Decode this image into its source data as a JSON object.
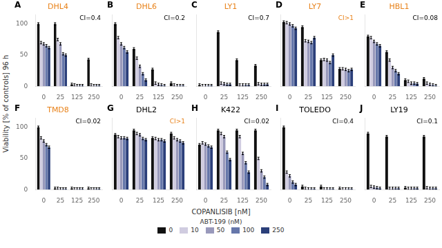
{
  "chart_data": [
    {
      "type": "bar",
      "title": "DHL4",
      "title_color": "#E8821A",
      "ylabel": "Viability [% of controls] 96 h",
      "annotations": [
        {
          "text": "A"
        },
        {
          "text": "CI=0.4",
          "color": "black"
        }
      ],
      "categories": [
        "0",
        "25",
        "125",
        "250"
      ],
      "series": [
        {
          "name": "0",
          "color": "#111111",
          "values": [
            100,
            100,
            3,
            43
          ],
          "error": [
            2,
            2,
            2,
            2
          ]
        },
        {
          "name": "10",
          "color": "#d0cce0",
          "values": [
            70,
            75,
            2,
            2
          ],
          "error": [
            2,
            2,
            2,
            2
          ]
        },
        {
          "name": "50",
          "color": "#9999bb",
          "values": [
            68,
            68,
            1,
            1
          ],
          "error": [
            2,
            2,
            2,
            2
          ]
        },
        {
          "name": "100",
          "color": "#6677aa",
          "values": [
            65,
            52,
            1,
            1
          ],
          "error": [
            2,
            2,
            2,
            2
          ]
        },
        {
          "name": "250",
          "color": "#2b3f7a",
          "values": [
            62,
            50,
            1,
            1
          ],
          "error": [
            2,
            2,
            2,
            2
          ]
        }
      ],
      "ylim": [
        0,
        115
      ],
      "yticks": [
        0,
        50,
        100
      ],
      "grid": false
    },
    {
      "type": "bar",
      "title": "DHL6",
      "title_color": "#E8821A",
      "annotations": [
        {
          "text": "B"
        },
        {
          "text": "CI=0.2",
          "color": "black"
        }
      ],
      "categories": [
        "0",
        "25",
        "125",
        "250"
      ],
      "series": [
        {
          "name": "0",
          "color": "#111111",
          "values": [
            100,
            60,
            27,
            5
          ],
          "error": [
            2,
            2,
            2,
            2
          ]
        },
        {
          "name": "10",
          "color": "#d0cce0",
          "values": [
            78,
            45,
            5,
            2
          ],
          "error": [
            2,
            2,
            2,
            2
          ]
        },
        {
          "name": "50",
          "color": "#9999bb",
          "values": [
            68,
            32,
            3,
            1
          ],
          "error": [
            2,
            2,
            2,
            2
          ]
        },
        {
          "name": "100",
          "color": "#6677aa",
          "values": [
            62,
            20,
            2,
            1
          ],
          "error": [
            2,
            2,
            2,
            2
          ]
        },
        {
          "name": "250",
          "color": "#2b3f7a",
          "values": [
            55,
            10,
            1,
            1
          ],
          "error": [
            2,
            2,
            2,
            2
          ]
        }
      ],
      "ylim": [
        0,
        115
      ],
      "yticks": [
        0,
        50,
        100
      ],
      "grid": false,
      "tick_labels": "x"
    },
    {
      "type": "bar",
      "title": "LY1",
      "title_color": "#E8821A",
      "annotations": [
        {
          "text": "C"
        },
        {
          "text": "CI=0.7",
          "color": "black"
        }
      ],
      "categories": [
        "0",
        "25",
        "125",
        "250"
      ],
      "series": [
        {
          "name": "0",
          "color": "#111111",
          "values": [
            2,
            87,
            42,
            33
          ],
          "error": [
            2,
            2,
            2,
            2
          ]
        },
        {
          "name": "10",
          "color": "#d0cce0",
          "values": [
            1,
            5,
            2,
            4
          ],
          "error": [
            2,
            2,
            2,
            2
          ]
        },
        {
          "name": "50",
          "color": "#9999bb",
          "values": [
            1,
            4,
            2,
            3
          ],
          "error": [
            2,
            2,
            2,
            2
          ]
        },
        {
          "name": "100",
          "color": "#6677aa",
          "values": [
            1,
            3,
            2,
            3
          ],
          "error": [
            2,
            2,
            2,
            2
          ]
        },
        {
          "name": "250",
          "color": "#2b3f7a",
          "values": [
            1,
            3,
            2,
            3
          ],
          "error": [
            2,
            2,
            2,
            2
          ]
        }
      ],
      "ylim": [
        0,
        115
      ],
      "yticks": [
        0,
        50,
        100
      ],
      "grid": false,
      "tick_labels": "x"
    },
    {
      "type": "bar",
      "title": "LY7",
      "title_color": "#E8821A",
      "annotations": [
        {
          "text": "D"
        },
        {
          "text": "CI>1",
          "color": "#E8821A"
        }
      ],
      "categories": [
        "0",
        "25",
        "125",
        "250"
      ],
      "series": [
        {
          "name": "0",
          "color": "#111111",
          "values": [
            103,
            95,
            42,
            28
          ],
          "error": [
            2,
            2,
            2,
            2
          ]
        },
        {
          "name": "10",
          "color": "#d0cce0",
          "values": [
            102,
            73,
            43,
            28
          ],
          "error": [
            2,
            2,
            2,
            2
          ]
        },
        {
          "name": "50",
          "color": "#9999bb",
          "values": [
            100,
            72,
            42,
            27
          ],
          "error": [
            2,
            2,
            2,
            2
          ]
        },
        {
          "name": "100",
          "color": "#6677aa",
          "values": [
            97,
            70,
            38,
            25
          ],
          "error": [
            2,
            2,
            2,
            2
          ]
        },
        {
          "name": "250",
          "color": "#2b3f7a",
          "values": [
            93,
            78,
            50,
            27
          ],
          "error": [
            2,
            2,
            2,
            2
          ]
        }
      ],
      "ylim": [
        0,
        115
      ],
      "yticks": [
        0,
        50,
        100
      ],
      "grid": false,
      "tick_labels": "x"
    },
    {
      "type": "bar",
      "title": "HBL1",
      "title_color": "#E8821A",
      "annotations": [
        {
          "text": "E"
        },
        {
          "text": "CI=0.08",
          "color": "black"
        }
      ],
      "categories": [
        "0",
        "25",
        "125",
        "250"
      ],
      "series": [
        {
          "name": "0",
          "color": "#111111",
          "values": [
            80,
            55,
            10,
            12
          ],
          "error": [
            2,
            2,
            2,
            2
          ]
        },
        {
          "name": "10",
          "color": "#d0cce0",
          "values": [
            78,
            42,
            8,
            5
          ],
          "error": [
            2,
            2,
            2,
            2
          ]
        },
        {
          "name": "50",
          "color": "#9999bb",
          "values": [
            72,
            30,
            5,
            3
          ],
          "error": [
            2,
            2,
            2,
            2
          ]
        },
        {
          "name": "100",
          "color": "#6677aa",
          "values": [
            68,
            25,
            5,
            2
          ],
          "error": [
            2,
            2,
            2,
            2
          ]
        },
        {
          "name": "250",
          "color": "#2b3f7a",
          "values": [
            65,
            20,
            4,
            1
          ],
          "error": [
            2,
            2,
            2,
            2
          ]
        }
      ],
      "ylim": [
        0,
        115
      ],
      "yticks": [
        0,
        50,
        100
      ],
      "grid": false,
      "tick_labels": "x"
    },
    {
      "type": "bar",
      "title": "TMD8",
      "title_color": "#E8821A",
      "annotations": [
        {
          "text": "F"
        },
        {
          "text": "CI=0.02",
          "color": "black"
        }
      ],
      "categories": [
        "0",
        "25",
        "125",
        "250"
      ],
      "series": [
        {
          "name": "0",
          "color": "#111111",
          "values": [
            100,
            2,
            2,
            2
          ],
          "error": [
            2,
            2,
            2,
            2
          ]
        },
        {
          "name": "10",
          "color": "#d0cce0",
          "values": [
            83,
            2,
            1,
            1
          ],
          "error": [
            2,
            2,
            2,
            2
          ]
        },
        {
          "name": "50",
          "color": "#9999bb",
          "values": [
            78,
            1,
            1,
            1
          ],
          "error": [
            2,
            2,
            2,
            2
          ]
        },
        {
          "name": "100",
          "color": "#6677aa",
          "values": [
            72,
            1,
            1,
            1
          ],
          "error": [
            2,
            2,
            2,
            2
          ]
        },
        {
          "name": "250",
          "color": "#2b3f7a",
          "values": [
            68,
            1,
            1,
            1
          ],
          "error": [
            2,
            2,
            2,
            2
          ]
        }
      ],
      "ylim": [
        0,
        115
      ],
      "yticks": [
        0,
        50,
        100
      ],
      "grid": false
    },
    {
      "type": "bar",
      "title": "DHL2",
      "title_color": "black",
      "annotations": [
        {
          "text": "G"
        },
        {
          "text": "CI>1",
          "color": "#E8821A"
        }
      ],
      "categories": [
        "0",
        "25",
        "125",
        "250"
      ],
      "series": [
        {
          "name": "0",
          "color": "#111111",
          "values": [
            88,
            95,
            83,
            90
          ],
          "error": [
            2,
            2,
            2,
            2
          ]
        },
        {
          "name": "10",
          "color": "#d0cce0",
          "values": [
            85,
            90,
            82,
            83
          ],
          "error": [
            2,
            2,
            2,
            2
          ]
        },
        {
          "name": "50",
          "color": "#9999bb",
          "values": [
            83,
            88,
            80,
            80
          ],
          "error": [
            2,
            2,
            2,
            2
          ]
        },
        {
          "name": "100",
          "color": "#6677aa",
          "values": [
            83,
            82,
            80,
            78
          ],
          "error": [
            2,
            2,
            2,
            2
          ]
        },
        {
          "name": "250",
          "color": "#2b3f7a",
          "values": [
            82,
            80,
            78,
            75
          ],
          "error": [
            2,
            2,
            2,
            2
          ]
        }
      ],
      "ylim": [
        0,
        115
      ],
      "yticks": [
        0,
        50,
        100
      ],
      "grid": false,
      "tick_labels": "x"
    },
    {
      "type": "bar",
      "title": "K422",
      "title_color": "black",
      "xlabel": "COPANLISIB [nM]",
      "legend": "bottom",
      "legend_title": "ABT-199 (nM)",
      "annotations": [
        {
          "text": "H"
        },
        {
          "text": "CI=0.02",
          "color": "black"
        }
      ],
      "categories": [
        "0",
        "25",
        "125",
        "250"
      ],
      "series": [
        {
          "name": "0",
          "color": "#111111",
          "values": [
            72,
            95,
            95,
            95
          ],
          "error": [
            2,
            2,
            2,
            2
          ]
        },
        {
          "name": "10",
          "color": "#d0cce0",
          "values": [
            75,
            90,
            85,
            50
          ],
          "error": [
            2,
            2,
            2,
            2
          ]
        },
        {
          "name": "50",
          "color": "#9999bb",
          "values": [
            73,
            85,
            58,
            30
          ],
          "error": [
            2,
            2,
            2,
            2
          ]
        },
        {
          "name": "100",
          "color": "#6677aa",
          "values": [
            70,
            60,
            43,
            20
          ],
          "error": [
            2,
            2,
            2,
            2
          ]
        },
        {
          "name": "250",
          "color": "#2b3f7a",
          "values": [
            68,
            48,
            28,
            8
          ],
          "error": [
            2,
            2,
            2,
            2
          ]
        }
      ],
      "ylim": [
        0,
        115
      ],
      "yticks": [
        0,
        50,
        100
      ],
      "grid": false,
      "tick_labels": "x"
    },
    {
      "type": "bar",
      "title": "TOLEDO",
      "title_color": "black",
      "annotations": [
        {
          "text": "I"
        },
        {
          "text": "CI=0.4",
          "color": "black"
        }
      ],
      "categories": [
        "0",
        "25",
        "125",
        "250"
      ],
      "series": [
        {
          "name": "0",
          "color": "#111111",
          "values": [
            100,
            5,
            5,
            2
          ],
          "error": [
            2,
            2,
            2,
            2
          ]
        },
        {
          "name": "10",
          "color": "#d0cce0",
          "values": [
            28,
            2,
            1,
            1
          ],
          "error": [
            2,
            2,
            2,
            2
          ]
        },
        {
          "name": "50",
          "color": "#9999bb",
          "values": [
            22,
            1,
            1,
            1
          ],
          "error": [
            2,
            2,
            2,
            2
          ]
        },
        {
          "name": "100",
          "color": "#6677aa",
          "values": [
            12,
            1,
            1,
            1
          ],
          "error": [
            2,
            2,
            2,
            2
          ]
        },
        {
          "name": "250",
          "color": "#2b3f7a",
          "values": [
            8,
            1,
            1,
            1
          ],
          "error": [
            2,
            2,
            2,
            2
          ]
        }
      ],
      "ylim": [
        0,
        115
      ],
      "yticks": [
        0,
        50,
        100
      ],
      "grid": false,
      "tick_labels": "x"
    },
    {
      "type": "bar",
      "title": "LY19",
      "title_color": "black",
      "annotations": [
        {
          "text": "J"
        },
        {
          "text": "CI=0.1",
          "color": "black"
        }
      ],
      "categories": [
        "0",
        "25",
        "125",
        "250"
      ],
      "series": [
        {
          "name": "0",
          "color": "#111111",
          "values": [
            90,
            85,
            3,
            85
          ],
          "error": [
            2,
            2,
            2,
            2
          ]
        },
        {
          "name": "10",
          "color": "#d0cce0",
          "values": [
            5,
            2,
            2,
            3
          ],
          "error": [
            2,
            2,
            2,
            2
          ]
        },
        {
          "name": "50",
          "color": "#9999bb",
          "values": [
            4,
            2,
            2,
            2
          ],
          "error": [
            2,
            2,
            2,
            2
          ]
        },
        {
          "name": "100",
          "color": "#6677aa",
          "values": [
            3,
            2,
            2,
            2
          ],
          "error": [
            2,
            2,
            2,
            2
          ]
        },
        {
          "name": "250",
          "color": "#2b3f7a",
          "values": [
            2,
            2,
            2,
            2
          ],
          "error": [
            2,
            2,
            2,
            2
          ]
        }
      ],
      "ylim": [
        0,
        115
      ],
      "yticks": [
        0,
        50,
        100
      ],
      "grid": false,
      "tick_labels": "x"
    }
  ]
}
